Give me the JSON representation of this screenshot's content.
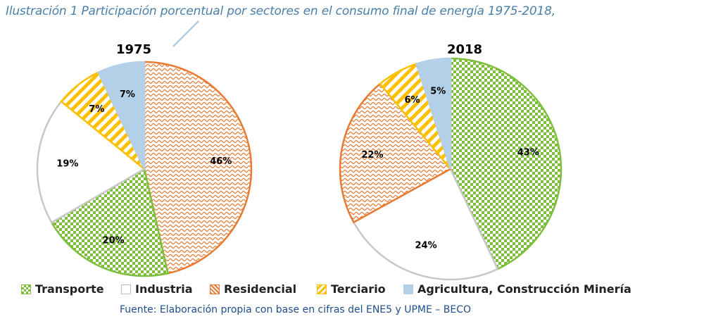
{
  "page": {
    "title": "Ilustración 1 Participación porcentual por sectores en el consumo final de energía 1975-2018,",
    "source": "Fuente: Elaboración propia con base en cifras del  ENE5 y  UPME – BECO"
  },
  "chart_data": [
    {
      "type": "pie",
      "title": "1975",
      "categories": [
        "Residencial",
        "Transporte",
        "Industria",
        "Terciario",
        "Agricultura, Construcción Minería"
      ],
      "values": [
        46,
        20,
        19,
        7,
        7
      ],
      "labels": [
        "46%",
        "20%",
        "19%",
        "7%",
        "7%"
      ],
      "legend": "bottom"
    },
    {
      "type": "pie",
      "title": "2018",
      "categories": [
        "Transporte",
        "Industria",
        "Residencial",
        "Terciario",
        "Agricultura, Construcción Minería"
      ],
      "values": [
        43,
        24,
        22,
        6,
        5
      ],
      "labels": [
        "43%",
        "24%",
        "22%",
        "6%",
        "5%"
      ],
      "legend": "bottom"
    }
  ],
  "legend": [
    {
      "key": "transporte",
      "label": "Transporte",
      "color": "#7dbf3a"
    },
    {
      "key": "industria",
      "label": "Industria",
      "color": "#ffffff"
    },
    {
      "key": "residencial",
      "label": "Residencial",
      "color": "#e87a32"
    },
    {
      "key": "terciario",
      "label": "Terciario",
      "color": "#ffc000"
    },
    {
      "key": "agricultura",
      "label": "Agricultura, Construcción Minería",
      "color": "#b4cfe8"
    }
  ]
}
